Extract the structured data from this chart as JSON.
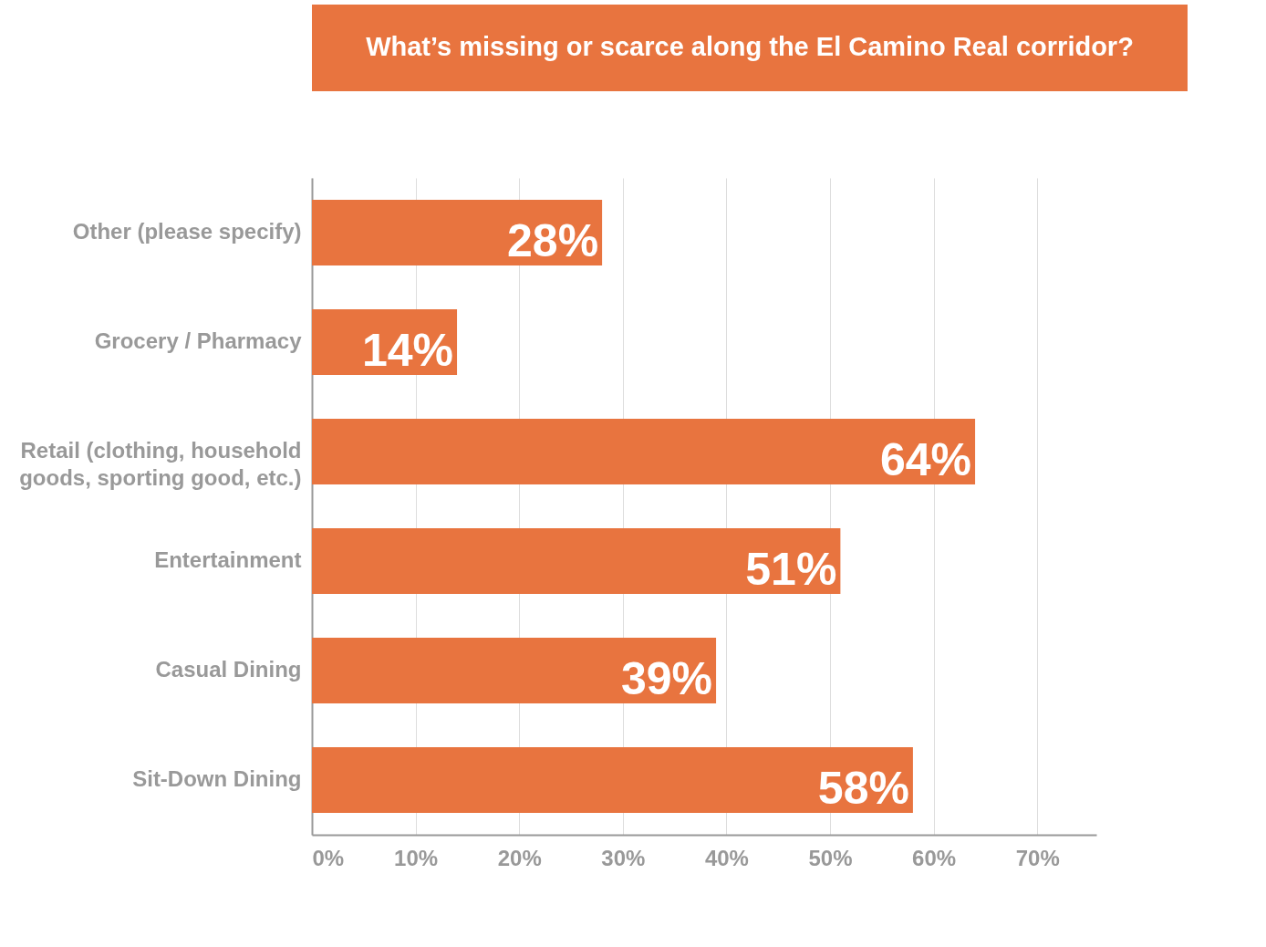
{
  "chart_data": {
    "type": "bar",
    "orientation": "horizontal",
    "title": "What’s missing or scarce along the El Camino Real corridor?",
    "categories": [
      "Other (please specify)",
      "Grocery / Pharmacy",
      "Retail (clothing, household\ngoods, sporting good, etc.)",
      "Entertainment",
      "Casual Dining",
      "Sit-Down Dining"
    ],
    "values": [
      28,
      14,
      64,
      51,
      39,
      58
    ],
    "value_labels": [
      "28%",
      "14%",
      "64%",
      "51%",
      "39%",
      "58%"
    ],
    "color": "#e8743f",
    "xlim": [
      0,
      75.7
    ],
    "xticks": [
      {
        "value": 0,
        "label": "0%"
      },
      {
        "value": 10,
        "label": "10%"
      },
      {
        "value": 20,
        "label": "20%"
      },
      {
        "value": 30,
        "label": "30%"
      },
      {
        "value": 40,
        "label": "40%"
      },
      {
        "value": 50,
        "label": "50%"
      },
      {
        "value": 60,
        "label": "60%"
      },
      {
        "value": 70,
        "label": "70%"
      }
    ],
    "grid": "x"
  }
}
